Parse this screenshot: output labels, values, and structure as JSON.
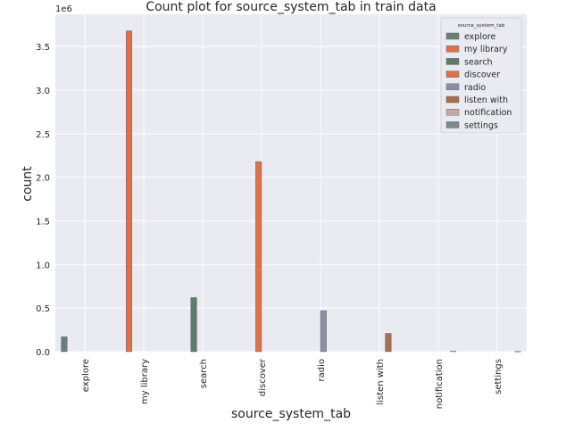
{
  "chart_data": {
    "type": "bar",
    "title": "Count plot for source_system_tab in train data",
    "xlabel": "source_system_tab",
    "ylabel": "count",
    "y_offset_text": "1e6",
    "categories": [
      "explore",
      "my library",
      "search",
      "discover",
      "radio",
      "listen with",
      "notification",
      "settings"
    ],
    "yticks": [
      0.0,
      0.5,
      1.0,
      1.5,
      2.0,
      2.5,
      3.0,
      3.5
    ],
    "ytick_labels": [
      "0.0",
      "0.5",
      "1.0",
      "1.5",
      "2.0",
      "2.5",
      "3.0",
      "3.5"
    ],
    "ylim": [
      0,
      3.87
    ],
    "y_unit_multiplier": 1000000,
    "grid": true,
    "legend_title": "source_system_tab",
    "legend_position": "top-right",
    "series": [
      {
        "name": "explore",
        "color": "#6b7f7a",
        "values": [
          0.17,
          0,
          0,
          0,
          0,
          0,
          0,
          0
        ]
      },
      {
        "name": "my library",
        "color": "#d9734f",
        "values": [
          0,
          3.68,
          0,
          0,
          0,
          0,
          0,
          0
        ]
      },
      {
        "name": "search",
        "color": "#5f7a68",
        "values": [
          0,
          0,
          0.62,
          0,
          0,
          0,
          0,
          0
        ]
      },
      {
        "name": "discover",
        "color": "#d9734f",
        "values": [
          0,
          0,
          0,
          2.18,
          0,
          0,
          0,
          0
        ]
      },
      {
        "name": "radio",
        "color": "#8c8fa3",
        "values": [
          0,
          0,
          0,
          0,
          0.47,
          0,
          0,
          0
        ]
      },
      {
        "name": "listen with",
        "color": "#a4704f",
        "values": [
          0,
          0,
          0,
          0,
          0,
          0.21,
          0,
          0
        ]
      },
      {
        "name": "notification",
        "color": "#c8a8a0",
        "values": [
          0,
          0,
          0,
          0,
          0,
          0,
          0.005,
          0
        ]
      },
      {
        "name": "settings",
        "color": "#7f8a8c",
        "values": [
          0,
          0,
          0,
          0,
          0,
          0,
          0,
          0.003
        ]
      }
    ]
  }
}
